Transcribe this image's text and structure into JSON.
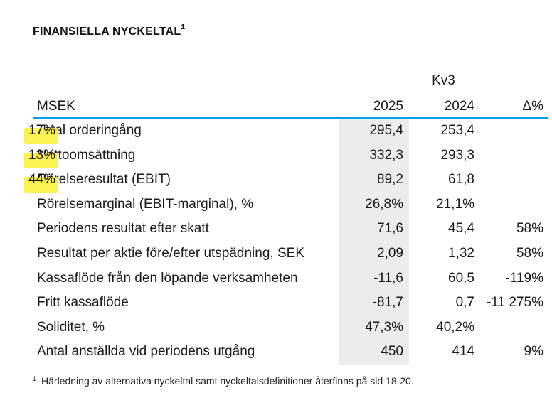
{
  "title": "FINANSIELLA NYCKELTAL",
  "title_sup": "1",
  "period_header": "Kv3",
  "columns": {
    "label": "MSEK",
    "c1": "2025",
    "c2": "2024",
    "c3": "Δ%"
  },
  "rows": [
    {
      "label": "Total orderingång",
      "c1": "295,4",
      "c2": "253,4",
      "c3": "17%",
      "highlight": true
    },
    {
      "label": "Nettoomsättning",
      "c1": "332,3",
      "c2": "293,3",
      "c3": "13%",
      "highlight": true
    },
    {
      "label": "Rörelseresultat (EBIT)",
      "c1": "89,2",
      "c2": "61,8",
      "c3": "44%",
      "highlight": true
    },
    {
      "label": "Rörelsemarginal (EBIT-marginal), %",
      "c1": "26,8%",
      "c2": "21,1%",
      "c3": ""
    },
    {
      "label": "Periodens resultat efter skatt",
      "c1": "71,6",
      "c2": "45,4",
      "c3": "58%"
    },
    {
      "label": "Resultat per aktie före/efter utspädning, SEK",
      "c1": "2,09",
      "c2": "1,32",
      "c3": "58%"
    },
    {
      "label": "Kassaflöde från den löpande verksamheten",
      "c1": "-11,6",
      "c2": "60,5",
      "c3": "-119%"
    },
    {
      "label": "Fritt kassaflöde",
      "c1": "-81,7",
      "c2": "0,7",
      "c3": "-11 275%"
    },
    {
      "label": "Soliditet, %",
      "c1": "47,3%",
      "c2": "40,2%",
      "c3": ""
    },
    {
      "label": "Antal anställda vid periodens utgång",
      "c1": "450",
      "c2": "414",
      "c3": "9%"
    }
  ],
  "footnote_sup": "1",
  "footnote": "Härledning av alternativa nyckeltal samt nyckeltalsdefinitioner återfinns på sid 18-20.",
  "colors": {
    "header_rule": "#00a3e8",
    "highlight": "#fbf24a",
    "current_year_shade": "#ececec"
  }
}
